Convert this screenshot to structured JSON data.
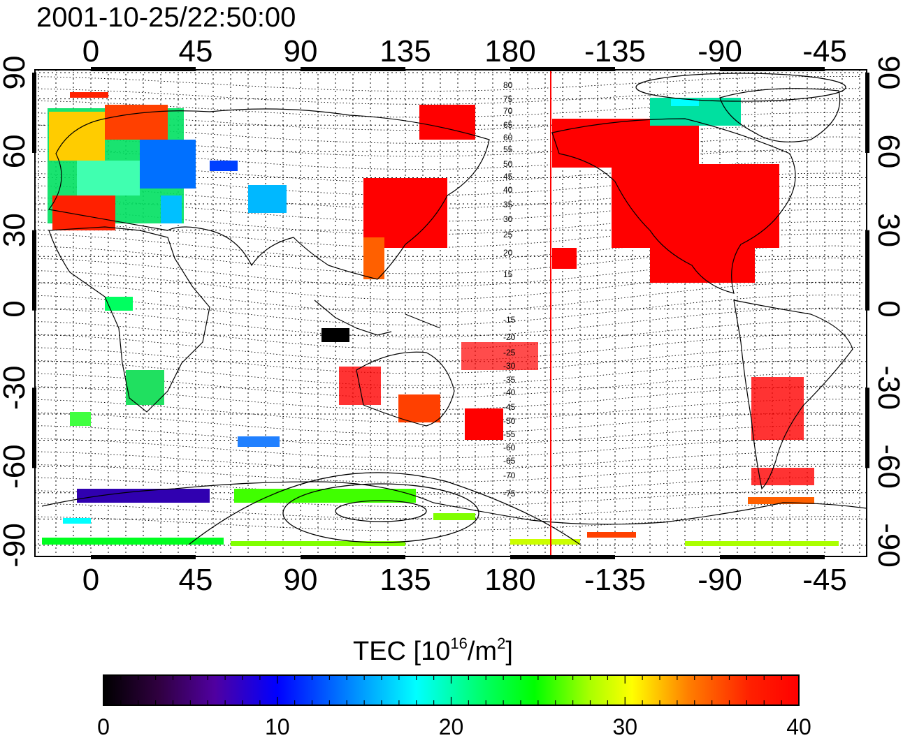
{
  "title": "2001-10-25/22:50:00",
  "map": {
    "lon_ticks": [
      "0",
      "45",
      "90",
      "135",
      "180",
      "-135",
      "-90",
      "-45"
    ],
    "lat_ticks": [
      "90",
      "60",
      "30",
      "0",
      "-30",
      "-60",
      "-90"
    ],
    "terminator_line_lon": "-150",
    "contour_labels": [
      "80",
      "75",
      "70",
      "65",
      "60",
      "55",
      "50",
      "45",
      "40",
      "35",
      "30",
      "25",
      "20",
      "15",
      "-15",
      "-20",
      "-25",
      "-30",
      "-35",
      "-40",
      "-45",
      "-50",
      "-55",
      "-60",
      "-65",
      "-70",
      "-75"
    ]
  },
  "colorbar": {
    "label_main": "TEC  [10",
    "label_exp1": "16",
    "label_mid": "/m",
    "label_exp2": "2",
    "label_end": "]",
    "ticks": [
      "0",
      "10",
      "20",
      "30",
      "40"
    ],
    "colors": [
      "#000000",
      "#400060",
      "#4000c0",
      "#0000ff",
      "#0080ff",
      "#00ffff",
      "#00ff80",
      "#00ff00",
      "#80ff00",
      "#ffff00",
      "#ff8000",
      "#ff0000"
    ]
  }
}
